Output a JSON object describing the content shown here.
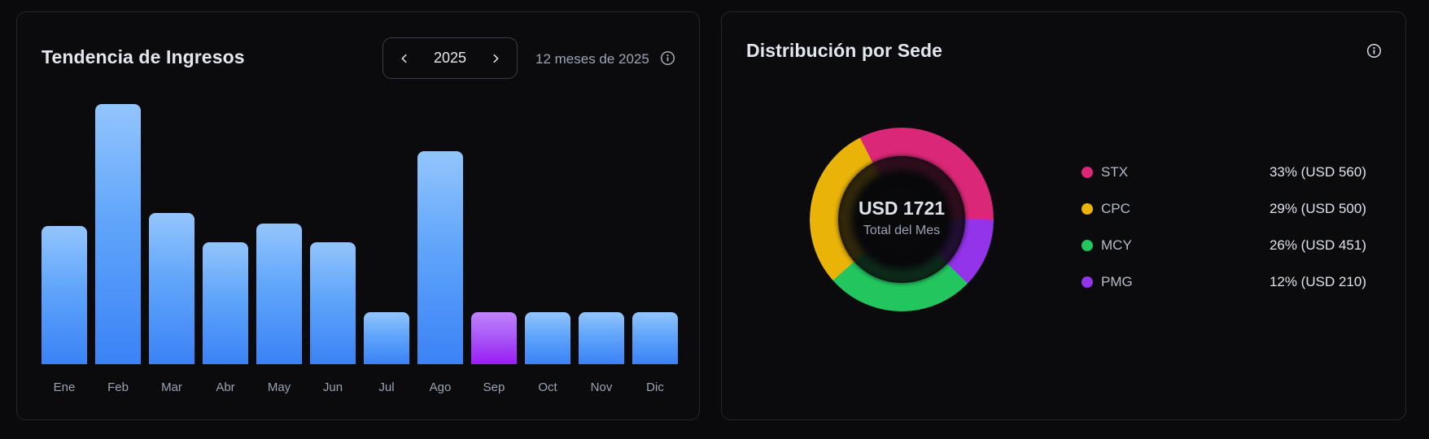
{
  "revenue_card": {
    "title": "Tendencia de Ingresos",
    "year_selector": {
      "prev_icon": "chevron-left-icon",
      "year": "2025",
      "next_icon": "chevron-right-icon"
    },
    "period_label": "12 meses de 2025",
    "info_icon": "info-icon"
  },
  "distribution_card": {
    "title": "Distribución por Sede",
    "info_icon": "info-icon",
    "center_total": "USD 1721",
    "center_subtitle": "Total del Mes",
    "legend": [
      {
        "name": "STX",
        "value": "33% (USD 560)",
        "color": "#db2777"
      },
      {
        "name": "CPC",
        "value": "29% (USD 500)",
        "color": "#eab308"
      },
      {
        "name": "MCY",
        "value": "26% (USD 451)",
        "color": "#22c55e"
      },
      {
        "name": "PMG",
        "value": "12% (USD 210)",
        "color": "#9333ea"
      }
    ]
  },
  "colors": {
    "bar_top": "#93c5fd",
    "bar_bottom": "#3b82f6",
    "highlight_top": "#c084fc",
    "highlight_bottom": "#9b1cf5",
    "background": "#0a0a0c",
    "card_border": "#25262b"
  },
  "chart_data": [
    {
      "type": "bar",
      "title": "Tendencia de Ingresos",
      "subtitle": "12 meses de 2025",
      "categories": [
        "Ene",
        "Feb",
        "Mar",
        "Abr",
        "May",
        "Jun",
        "Jul",
        "Ago",
        "Sep",
        "Oct",
        "Nov",
        "Dic"
      ],
      "values_relative_pct": [
        53,
        100,
        58,
        47,
        54,
        47,
        20,
        82,
        20,
        20,
        20,
        20
      ],
      "highlighted_category": "Sep",
      "xlabel": "",
      "ylabel": "",
      "ylim": [
        0,
        100
      ],
      "grid": false,
      "legend": "none"
    },
    {
      "type": "pie",
      "variant": "donut",
      "title": "Distribución por Sede",
      "center_label": "USD 1721",
      "center_sublabel": "Total del Mes",
      "total": 1721,
      "categories": [
        "STX",
        "CPC",
        "MCY",
        "PMG"
      ],
      "values": [
        560,
        500,
        451,
        210
      ],
      "percentages": [
        33,
        29,
        26,
        12
      ],
      "colors": [
        "#db2777",
        "#eab308",
        "#22c55e",
        "#9333ea"
      ],
      "legend_position": "right"
    }
  ]
}
